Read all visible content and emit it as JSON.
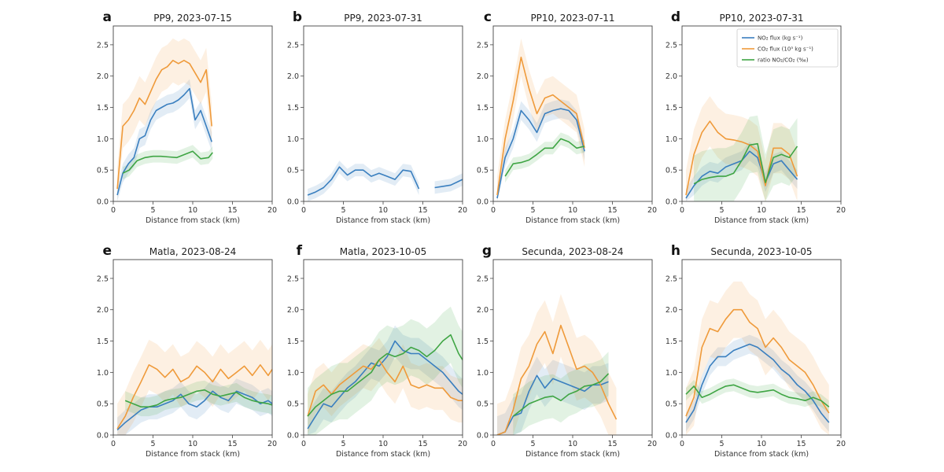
{
  "colors": {
    "no2": "#3a7fbf",
    "co2": "#ef9a3a",
    "ratio": "#3fa544"
  },
  "legend": {
    "placement": "upper-right of panel d",
    "entries": [
      {
        "key": "no2",
        "label": "NO₂ flux (kg s⁻¹)"
      },
      {
        "key": "co2",
        "label": "CO₂ flux (10³ kg s⁻¹)"
      },
      {
        "key": "ratio",
        "label": "ratio NO₂/CO₂ (‰)"
      }
    ]
  },
  "chart_data": [
    {
      "type": "line",
      "letter": "a",
      "title": "PP9, 2023-07-15",
      "xlabel": "Distance from stack (km)",
      "xlim": [
        0,
        20
      ],
      "ylim": [
        0,
        2.8
      ],
      "xticks": [
        0,
        5,
        10,
        15,
        20
      ],
      "yticks": [
        0.0,
        0.5,
        1.0,
        1.5,
        2.0,
        2.5
      ],
      "series": [
        {
          "key": "no2",
          "x": [
            0.5,
            1.2,
            1.9,
            2.6,
            3.3,
            4.0,
            4.7,
            5.4,
            6.1,
            6.8,
            7.5,
            8.2,
            8.9,
            9.6,
            10.3,
            11.0,
            11.7,
            12.4
          ],
          "y": [
            0.1,
            0.45,
            0.6,
            0.7,
            1.0,
            1.05,
            1.3,
            1.45,
            1.5,
            1.55,
            1.57,
            1.62,
            1.7,
            1.8,
            1.3,
            1.45,
            1.2,
            0.95
          ],
          "band": 0.15
        },
        {
          "key": "co2",
          "x": [
            0.5,
            1.2,
            1.9,
            2.6,
            3.3,
            4.0,
            4.7,
            5.4,
            6.1,
            6.8,
            7.5,
            8.2,
            8.9,
            9.6,
            10.3,
            11.0,
            11.7,
            12.4
          ],
          "y": [
            0.2,
            1.2,
            1.3,
            1.45,
            1.65,
            1.55,
            1.75,
            1.95,
            2.1,
            2.15,
            2.25,
            2.2,
            2.25,
            2.2,
            2.05,
            1.9,
            2.1,
            1.2
          ],
          "band": 0.35
        },
        {
          "key": "ratio",
          "x": [
            1.2,
            2.0,
            3.0,
            4.0,
            5.0,
            6.0,
            7.0,
            8.0,
            9.0,
            10.0,
            11.0,
            12.0,
            12.5
          ],
          "y": [
            0.45,
            0.5,
            0.65,
            0.7,
            0.72,
            0.72,
            0.71,
            0.7,
            0.75,
            0.8,
            0.68,
            0.7,
            0.78
          ],
          "band": 0.1
        }
      ]
    },
    {
      "type": "line",
      "letter": "b",
      "title": "PP9, 2023-07-31",
      "xlabel": "Distance from stack (km)",
      "xlim": [
        0,
        20
      ],
      "ylim": [
        0,
        2.8
      ],
      "xticks": [
        0,
        5,
        10,
        15,
        20
      ],
      "yticks": [
        0.0,
        0.5,
        1.0,
        1.5,
        2.0,
        2.5
      ],
      "series": [
        {
          "key": "no2",
          "x": [
            0.5,
            1.5,
            2.5,
            3.5,
            4.5,
            5.5,
            6.5,
            7.5,
            8.5,
            9.5,
            10.5,
            11.5,
            12.5,
            13.5,
            14.5
          ],
          "y": [
            0.1,
            0.15,
            0.22,
            0.35,
            0.55,
            0.42,
            0.5,
            0.5,
            0.4,
            0.45,
            0.4,
            0.35,
            0.5,
            0.48,
            0.2
          ],
          "band": 0.1
        },
        {
          "key": "no2",
          "x": [
            16.5,
            17.5,
            18.5,
            19.5,
            20.0
          ],
          "y": [
            0.22,
            0.24,
            0.26,
            0.32,
            0.35
          ],
          "band": 0.1
        }
      ]
    },
    {
      "type": "line",
      "letter": "c",
      "title": "PP10, 2023-07-11",
      "xlabel": "Distance from stack (km)",
      "xlim": [
        0,
        20
      ],
      "ylim": [
        0,
        2.8
      ],
      "xticks": [
        0,
        5,
        10,
        15,
        20
      ],
      "yticks": [
        0.0,
        0.5,
        1.0,
        1.5,
        2.0,
        2.5
      ],
      "series": [
        {
          "key": "no2",
          "x": [
            0.5,
            1.5,
            2.5,
            3.5,
            4.5,
            5.5,
            6.5,
            7.5,
            8.5,
            9.5,
            10.5,
            11.5
          ],
          "y": [
            0.05,
            0.7,
            1.0,
            1.45,
            1.3,
            1.1,
            1.4,
            1.45,
            1.48,
            1.45,
            1.3,
            0.8
          ],
          "band": 0.15
        },
        {
          "key": "co2",
          "x": [
            0.5,
            1.5,
            2.5,
            3.5,
            4.5,
            5.5,
            6.5,
            7.5,
            8.5,
            9.5,
            10.5,
            11.5
          ],
          "y": [
            0.1,
            1.0,
            1.6,
            2.3,
            1.8,
            1.4,
            1.65,
            1.7,
            1.6,
            1.5,
            1.4,
            0.85
          ],
          "band": 0.3
        },
        {
          "key": "ratio",
          "x": [
            1.5,
            2.5,
            3.5,
            4.5,
            5.5,
            6.5,
            7.5,
            8.5,
            9.5,
            10.5,
            11.5
          ],
          "y": [
            0.4,
            0.6,
            0.62,
            0.66,
            0.75,
            0.85,
            0.85,
            1.0,
            0.95,
            0.85,
            0.88
          ],
          "band": 0.1
        }
      ]
    },
    {
      "type": "line",
      "letter": "d",
      "title": "PP10, 2023-07-31",
      "xlabel": "Distance from stack (km)",
      "xlim": [
        0,
        20
      ],
      "ylim": [
        0,
        2.8
      ],
      "xticks": [
        0,
        5,
        10,
        15,
        20
      ],
      "yticks": [
        0.0,
        0.5,
        1.0,
        1.5,
        2.0,
        2.5
      ],
      "series": [
        {
          "key": "no2",
          "x": [
            0.5,
            1.5,
            2.5,
            3.5,
            4.5,
            5.5,
            6.5,
            7.5,
            8.5,
            9.5,
            10.5,
            11.5,
            12.5,
            13.5,
            14.5
          ],
          "y": [
            0.05,
            0.25,
            0.4,
            0.48,
            0.45,
            0.55,
            0.6,
            0.65,
            0.8,
            0.7,
            0.3,
            0.6,
            0.65,
            0.5,
            0.35
          ],
          "band": 0.15
        },
        {
          "key": "co2",
          "x": [
            0.5,
            1.5,
            2.5,
            3.5,
            4.5,
            5.5,
            6.5,
            7.5,
            8.5,
            9.5,
            10.5,
            11.5,
            12.5,
            13.5,
            14.5
          ],
          "y": [
            0.1,
            0.75,
            1.1,
            1.28,
            1.1,
            1.0,
            0.98,
            0.95,
            0.9,
            0.8,
            0.25,
            0.85,
            0.85,
            0.75,
            0.4
          ],
          "band": 0.4
        },
        {
          "key": "ratio",
          "x": [
            1.5,
            2.5,
            3.5,
            4.5,
            5.5,
            6.5,
            7.5,
            8.5,
            9.5,
            10.5,
            11.5,
            12.5,
            13.5,
            14.5
          ],
          "y": [
            0.28,
            0.35,
            0.38,
            0.4,
            0.4,
            0.45,
            0.65,
            0.9,
            0.92,
            0.3,
            0.7,
            0.75,
            0.7,
            0.88
          ],
          "band": 0.45
        }
      ]
    },
    {
      "type": "line",
      "letter": "e",
      "title": "Matla, 2023-08-24",
      "xlabel": "Distance from stack (km)",
      "xlim": [
        0,
        20
      ],
      "ylim": [
        0,
        2.8
      ],
      "xticks": [
        0,
        5,
        10,
        15,
        20
      ],
      "yticks": [
        0.0,
        0.5,
        1.0,
        1.5,
        2.0,
        2.5
      ],
      "series": [
        {
          "key": "no2",
          "x": [
            0.5,
            1.5,
            2.5,
            3.5,
            4.5,
            5.5,
            6.5,
            7.5,
            8.5,
            9.5,
            10.5,
            11.5,
            12.5,
            13.5,
            14.5,
            15.5,
            16.5,
            17.5,
            18.5,
            19.5,
            20.0
          ],
          "y": [
            0.08,
            0.2,
            0.3,
            0.4,
            0.45,
            0.45,
            0.5,
            0.55,
            0.65,
            0.5,
            0.45,
            0.55,
            0.7,
            0.6,
            0.55,
            0.7,
            0.65,
            0.6,
            0.5,
            0.55,
            0.5
          ],
          "band": 0.2
        },
        {
          "key": "co2",
          "x": [
            0.5,
            1.5,
            2.5,
            3.5,
            4.5,
            5.5,
            6.5,
            7.5,
            8.5,
            9.5,
            10.5,
            11.5,
            12.5,
            13.5,
            14.5,
            15.5,
            16.5,
            17.5,
            18.5,
            19.5,
            20.0
          ],
          "y": [
            0.1,
            0.3,
            0.6,
            0.85,
            1.12,
            1.05,
            0.92,
            1.05,
            0.85,
            0.92,
            1.1,
            1.0,
            0.85,
            1.05,
            0.9,
            1.0,
            1.1,
            0.95,
            1.12,
            0.95,
            1.05
          ],
          "band": 0.4
        },
        {
          "key": "ratio",
          "x": [
            1.5,
            2.5,
            3.5,
            4.5,
            5.5,
            6.5,
            7.5,
            8.5,
            9.5,
            10.5,
            11.5,
            12.5,
            13.5,
            14.5,
            15.5,
            16.5,
            17.5,
            18.5,
            19.5,
            20.0
          ],
          "y": [
            0.55,
            0.5,
            0.45,
            0.45,
            0.48,
            0.55,
            0.58,
            0.6,
            0.65,
            0.7,
            0.72,
            0.65,
            0.62,
            0.65,
            0.68,
            0.6,
            0.55,
            0.52,
            0.5,
            0.48
          ],
          "band": 0.15
        }
      ]
    },
    {
      "type": "line",
      "letter": "f",
      "title": "Matla, 2023-10-05",
      "xlabel": "Distance from stack (km)",
      "xlim": [
        0,
        20
      ],
      "ylim": [
        0,
        2.8
      ],
      "xticks": [
        0,
        5,
        10,
        15,
        20
      ],
      "yticks": [
        0.0,
        0.5,
        1.0,
        1.5,
        2.0,
        2.5
      ],
      "series": [
        {
          "key": "no2",
          "x": [
            0.5,
            1.5,
            2.5,
            3.5,
            4.5,
            5.5,
            6.5,
            7.5,
            8.5,
            9.5,
            10.5,
            11.5,
            12.5,
            13.5,
            14.5,
            15.5,
            16.5,
            17.5,
            18.5,
            19.5,
            20.0
          ],
          "y": [
            0.1,
            0.3,
            0.5,
            0.45,
            0.6,
            0.75,
            0.85,
            1.0,
            1.15,
            1.1,
            1.25,
            1.5,
            1.35,
            1.3,
            1.3,
            1.2,
            1.1,
            1.0,
            0.85,
            0.7,
            0.65
          ],
          "band": 0.25
        },
        {
          "key": "co2",
          "x": [
            0.5,
            1.5,
            2.5,
            3.5,
            4.5,
            5.5,
            6.5,
            7.5,
            8.5,
            9.5,
            10.5,
            11.5,
            12.5,
            13.5,
            14.5,
            15.5,
            16.5,
            17.5,
            18.5,
            19.5,
            20.0
          ],
          "y": [
            0.3,
            0.7,
            0.8,
            0.65,
            0.8,
            0.9,
            1.0,
            1.1,
            1.05,
            1.2,
            1.0,
            0.85,
            1.1,
            0.8,
            0.75,
            0.8,
            0.75,
            0.75,
            0.6,
            0.55,
            0.55
          ],
          "band": 0.35
        },
        {
          "key": "ratio",
          "x": [
            0.5,
            1.5,
            2.5,
            3.5,
            4.5,
            5.5,
            6.5,
            7.5,
            8.5,
            9.5,
            10.5,
            11.5,
            12.5,
            13.5,
            14.5,
            15.5,
            16.5,
            17.5,
            18.5,
            19.5,
            20.0
          ],
          "y": [
            0.3,
            0.45,
            0.55,
            0.65,
            0.7,
            0.7,
            0.8,
            0.9,
            1.0,
            1.2,
            1.3,
            1.25,
            1.3,
            1.4,
            1.35,
            1.25,
            1.35,
            1.5,
            1.6,
            1.3,
            1.2
          ],
          "band": 0.45
        }
      ]
    },
    {
      "type": "line",
      "letter": "g",
      "title": "Secunda, 2023-08-24",
      "xlabel": "Distance from stack (km)",
      "xlim": [
        0,
        20
      ],
      "ylim": [
        0,
        2.8
      ],
      "xticks": [
        0,
        5,
        10,
        15,
        20
      ],
      "yticks": [
        0.0,
        0.5,
        1.0,
        1.5,
        2.0,
        2.5
      ],
      "series": [
        {
          "key": "no2",
          "x": [
            0.5,
            1.5,
            2.5,
            3.5,
            4.5,
            5.5,
            6.5,
            7.5,
            8.5,
            9.5,
            10.5,
            11.5,
            12.5,
            13.5,
            14.5
          ],
          "y": [
            0.0,
            0.05,
            0.3,
            0.35,
            0.7,
            0.95,
            0.75,
            0.9,
            0.85,
            0.8,
            0.75,
            0.7,
            0.8,
            0.8,
            0.85
          ],
          "band": 0.3
        },
        {
          "key": "co2",
          "x": [
            0.5,
            1.5,
            2.5,
            3.5,
            4.5,
            5.5,
            6.5,
            7.5,
            8.5,
            9.5,
            10.5,
            11.5,
            12.5,
            13.5,
            14.5,
            15.5
          ],
          "y": [
            0.0,
            0.05,
            0.4,
            0.9,
            1.1,
            1.45,
            1.65,
            1.3,
            1.75,
            1.4,
            1.05,
            1.1,
            1.0,
            0.8,
            0.5,
            0.25
          ],
          "band": 0.5
        },
        {
          "key": "ratio",
          "x": [
            2.5,
            3.5,
            4.5,
            5.5,
            6.5,
            7.5,
            8.5,
            9.5,
            10.5,
            11.5,
            12.5,
            13.5,
            14.5
          ],
          "y": [
            0.3,
            0.4,
            0.5,
            0.55,
            0.6,
            0.62,
            0.55,
            0.65,
            0.7,
            0.78,
            0.8,
            0.85,
            0.98
          ],
          "band": 0.35
        }
      ]
    },
    {
      "type": "line",
      "letter": "h",
      "title": "Secunda, 2023-10-05",
      "xlabel": "Distance from stack (km)",
      "xlim": [
        0,
        20
      ],
      "ylim": [
        0,
        2.8
      ],
      "xticks": [
        0,
        5,
        10,
        15,
        20
      ],
      "yticks": [
        0.0,
        0.5,
        1.0,
        1.5,
        2.0,
        2.5
      ],
      "series": [
        {
          "key": "no2",
          "x": [
            0.5,
            1.5,
            2.5,
            3.5,
            4.5,
            5.5,
            6.5,
            7.5,
            8.5,
            9.5,
            10.5,
            11.5,
            12.5,
            13.5,
            14.5,
            15.5,
            16.5,
            17.5,
            18.5
          ],
          "y": [
            0.2,
            0.4,
            0.8,
            1.1,
            1.25,
            1.25,
            1.35,
            1.4,
            1.45,
            1.4,
            1.3,
            1.2,
            1.05,
            0.95,
            0.8,
            0.7,
            0.55,
            0.35,
            0.2
          ],
          "band": 0.15
        },
        {
          "key": "co2",
          "x": [
            0.5,
            1.5,
            2.5,
            3.5,
            4.5,
            5.5,
            6.5,
            7.5,
            8.5,
            9.5,
            10.5,
            11.5,
            12.5,
            13.5,
            14.5,
            15.5,
            16.5,
            17.5,
            18.5
          ],
          "y": [
            0.3,
            0.6,
            1.4,
            1.7,
            1.65,
            1.85,
            2.0,
            2.0,
            1.8,
            1.7,
            1.4,
            1.55,
            1.4,
            1.2,
            1.1,
            1.0,
            0.8,
            0.55,
            0.35
          ],
          "band": 0.45
        },
        {
          "key": "ratio",
          "x": [
            0.5,
            1.5,
            2.5,
            3.5,
            4.5,
            5.5,
            6.5,
            7.5,
            8.5,
            9.5,
            10.5,
            11.5,
            12.5,
            13.5,
            14.5,
            15.5,
            16.5,
            17.5,
            18.5
          ],
          "y": [
            0.65,
            0.78,
            0.6,
            0.65,
            0.72,
            0.78,
            0.8,
            0.75,
            0.7,
            0.68,
            0.7,
            0.72,
            0.65,
            0.6,
            0.58,
            0.55,
            0.6,
            0.55,
            0.45
          ],
          "band": 0.1
        }
      ]
    }
  ]
}
